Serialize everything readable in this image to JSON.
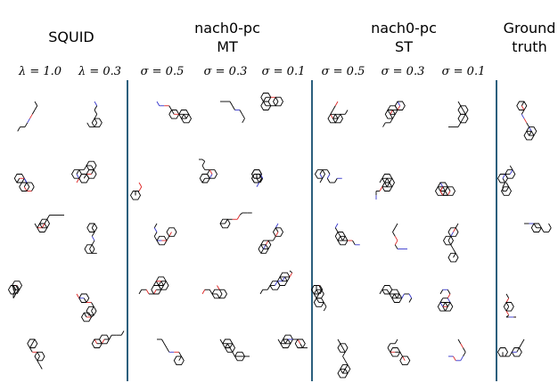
{
  "figure": {
    "groups": [
      {
        "lines": [
          "SQUID"
        ]
      },
      {
        "lines": [
          "nach0-pc",
          "MT"
        ]
      },
      {
        "lines": [
          "nach0-pc",
          "ST"
        ]
      },
      {
        "lines": [
          "Ground",
          "truth"
        ]
      }
    ],
    "subheaders": [
      "λ = 1.0",
      "λ = 0.3",
      "σ = 0.5",
      "σ = 0.3",
      "σ = 0.1",
      "σ = 0.5",
      "σ = 0.3",
      "σ = 0.1"
    ]
  }
}
